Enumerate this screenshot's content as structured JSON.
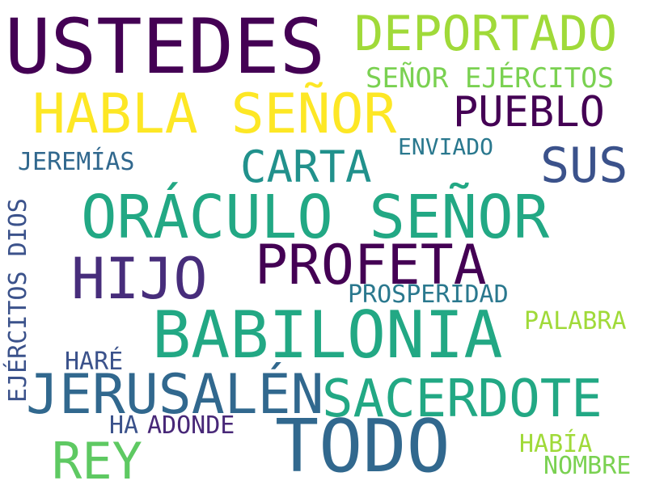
{
  "words": [
    {
      "text": "USTEDES",
      "color": "#440154"
    },
    {
      "text": "DEPORTADO",
      "color": "#a0da39"
    },
    {
      "text": "SEÑOR EJÉRCITOS",
      "color": "#7ad151"
    },
    {
      "text": "HABLA SEÑOR",
      "color": "#fde725"
    },
    {
      "text": "PUEBLO",
      "color": "#440154"
    },
    {
      "text": "ENVIADO",
      "color": "#2a788e"
    },
    {
      "text": "JEREMÍAS",
      "color": "#31688e"
    },
    {
      "text": "CARTA",
      "color": "#21918c"
    },
    {
      "text": "SUS",
      "color": "#3b528b"
    },
    {
      "text": "EJÉRCITOS DIOS",
      "color": "#3b528b"
    },
    {
      "text": "ORÁCULO SEÑOR",
      "color": "#22a884"
    },
    {
      "text": "PROFETA",
      "color": "#440154"
    },
    {
      "text": "HIJO",
      "color": "#472d7b"
    },
    {
      "text": "PROSPERIDAD",
      "color": "#2a788e"
    },
    {
      "text": "BABILONIA",
      "color": "#22a884"
    },
    {
      "text": "PALABRA",
      "color": "#a0da39"
    },
    {
      "text": "HARÉ",
      "color": "#3b528b"
    },
    {
      "text": "JERUSALÉN",
      "color": "#31688e"
    },
    {
      "text": "SACERDOTE",
      "color": "#22a884"
    },
    {
      "text": "TODO",
      "color": "#31688e"
    },
    {
      "text": "HA",
      "color": "#3b528b"
    },
    {
      "text": "ADONDE",
      "color": "#482878"
    },
    {
      "text": "HABÍA",
      "color": "#a0da39"
    },
    {
      "text": "REY",
      "color": "#5ec962"
    },
    {
      "text": "NOMBRE",
      "color": "#7ad151"
    }
  ]
}
